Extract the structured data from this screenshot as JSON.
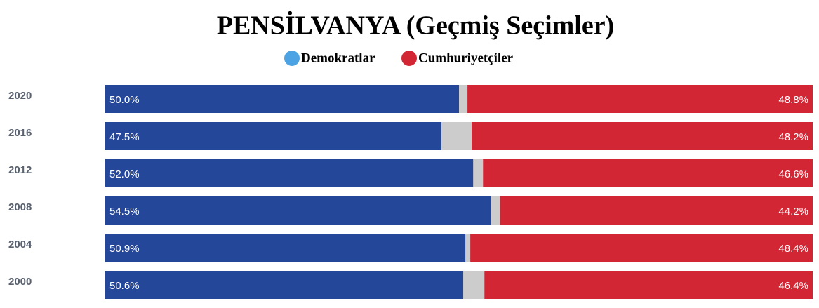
{
  "chart_data": {
    "type": "bar",
    "orientation": "horizontal",
    "stacked_from_both_ends": true,
    "title": "PENSİLVANYA (Geçmiş Seçimler)",
    "categories": [
      "2020",
      "2016",
      "2012",
      "2008",
      "2004",
      "2000"
    ],
    "xlim": [
      0,
      100
    ],
    "remainder_color": "#cccccc",
    "series": [
      {
        "name": "Demokratlar",
        "color": "#25479a",
        "legend_color": "#4ba3e3",
        "values": [
          50.0,
          47.5,
          52.0,
          54.5,
          50.9,
          50.6
        ],
        "value_labels": [
          "50.0%",
          "47.5%",
          "52.0%",
          "54.5%",
          "50.9%",
          "50.6%"
        ]
      },
      {
        "name": "Cumhuriyetçiler",
        "color": "#d22635",
        "legend_color": "#d22635",
        "values": [
          48.8,
          48.2,
          46.6,
          44.2,
          48.4,
          46.4
        ],
        "value_labels": [
          "48.8%",
          "48.2%",
          "46.6%",
          "44.2%",
          "48.4%",
          "46.4%"
        ]
      }
    ]
  }
}
